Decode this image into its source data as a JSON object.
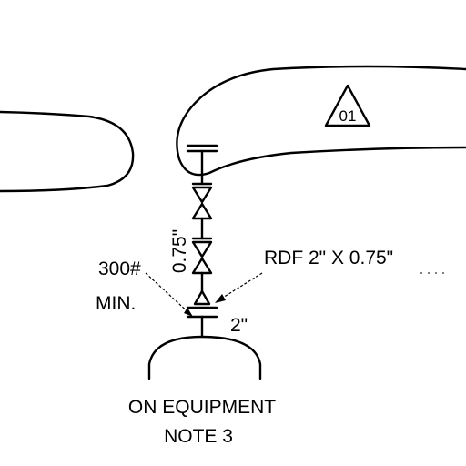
{
  "drawing": {
    "revision_tag": "01",
    "label_size": "0.75\"",
    "label_reducer": "RDF 2\" X 0.75\"",
    "label_rating_1": "300#",
    "label_rating_2": "MIN.",
    "label_nozzle": "2\"",
    "label_equipment_1": "ON EQUIPMENT",
    "label_equipment_2": "NOTE 3"
  }
}
